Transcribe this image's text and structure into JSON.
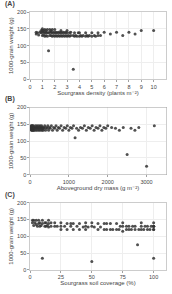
{
  "chart_data": [
    {
      "type": "scatter",
      "title": "(A)",
      "xlabel": "Sourgrass density (plants m⁻²)",
      "ylabel": "1000-grain weight (g)",
      "xlim": [
        0,
        11
      ],
      "ylim": [
        0,
        200
      ],
      "xticks": [
        0,
        1,
        2,
        3,
        4,
        5,
        6,
        7,
        8,
        9,
        10
      ],
      "yticks": [
        0,
        50,
        100,
        150,
        200
      ],
      "grid": true,
      "color": "#333333",
      "x": [
        0.5,
        0.5,
        0.6,
        0.7,
        0.8,
        0.9,
        0.9,
        1.0,
        1.0,
        1.0,
        1.0,
        1.1,
        1.1,
        1.1,
        1.2,
        1.2,
        1.2,
        1.3,
        1.3,
        1.3,
        1.4,
        1.4,
        1.4,
        1.5,
        1.5,
        1.6,
        1.6,
        1.6,
        1.7,
        1.7,
        1.7,
        1.8,
        1.8,
        1.8,
        1.9,
        1.9,
        2.0,
        2.0,
        2.0,
        2.1,
        2.1,
        2.2,
        2.2,
        2.3,
        2.3,
        2.4,
        2.4,
        2.5,
        2.5,
        2.5,
        2.6,
        2.6,
        2.7,
        2.7,
        2.8,
        2.8,
        2.9,
        2.9,
        3.0,
        3.0,
        3.0,
        3.1,
        3.2,
        3.2,
        3.3,
        3.3,
        3.5,
        3.5,
        3.6,
        3.6,
        3.7,
        3.8,
        3.9,
        4.0,
        4.0,
        4.1,
        4.2,
        4.3,
        4.5,
        4.5,
        4.6,
        4.7,
        4.8,
        5.0,
        5.0,
        5.2,
        5.3,
        5.5,
        5.5,
        5.7,
        6.0,
        6.5,
        7.0,
        7.5,
        8.0,
        8.5,
        9.0,
        10.0
      ],
      "values": [
        135,
        140,
        138,
        132,
        140,
        145,
        138,
        130,
        140,
        145,
        150,
        132,
        140,
        145,
        128,
        138,
        148,
        130,
        140,
        145,
        128,
        138,
        148,
        85,
        138,
        130,
        140,
        148,
        130,
        140,
        145,
        128,
        138,
        148,
        130,
        140,
        128,
        138,
        148,
        130,
        140,
        128,
        138,
        130,
        140,
        128,
        138,
        130,
        140,
        145,
        128,
        138,
        130,
        140,
        128,
        138,
        130,
        140,
        128,
        138,
        145,
        130,
        128,
        138,
        130,
        140,
        30,
        130,
        128,
        138,
        130,
        128,
        138,
        128,
        138,
        130,
        128,
        130,
        128,
        138,
        130,
        128,
        130,
        128,
        138,
        130,
        128,
        130,
        138,
        130,
        140,
        135,
        140,
        130,
        140,
        135,
        145,
        145
      ]
    },
    {
      "type": "scatter",
      "title": "(B)",
      "xlabel": "Aboveground dry mass (g m⁻²)",
      "ylabel": "1000-grain weight (g)",
      "xlim": [
        0,
        3500
      ],
      "ylim": [
        0,
        200
      ],
      "xticks": [
        0,
        1000,
        2000,
        3000
      ],
      "yticks": [
        0,
        50,
        100,
        150,
        200
      ],
      "grid": true,
      "color": "#333333",
      "x": [
        5,
        10,
        15,
        20,
        25,
        30,
        35,
        40,
        45,
        50,
        55,
        60,
        65,
        70,
        75,
        80,
        85,
        90,
        95,
        100,
        110,
        120,
        130,
        140,
        150,
        160,
        170,
        180,
        190,
        200,
        210,
        220,
        230,
        240,
        250,
        260,
        270,
        280,
        290,
        300,
        310,
        320,
        330,
        340,
        350,
        360,
        380,
        400,
        420,
        440,
        460,
        480,
        500,
        520,
        550,
        580,
        610,
        640,
        670,
        700,
        730,
        760,
        800,
        840,
        880,
        920,
        960,
        1000,
        1040,
        1080,
        1120,
        1160,
        1200,
        1250,
        1300,
        1350,
        1400,
        1450,
        1500,
        1550,
        1600,
        1650,
        1700,
        1750,
        1800,
        1850,
        1900,
        1950,
        2000,
        2100,
        2200,
        2300,
        2400,
        2500,
        2600,
        2700,
        2800,
        3000,
        3200
      ],
      "values": [
        138,
        140,
        135,
        142,
        138,
        145,
        132,
        140,
        138,
        145,
        132,
        138,
        145,
        132,
        140,
        138,
        145,
        132,
        140,
        138,
        132,
        140,
        138,
        145,
        132,
        140,
        138,
        145,
        132,
        140,
        138,
        145,
        132,
        140,
        138,
        145,
        132,
        140,
        138,
        145,
        132,
        140,
        138,
        132,
        140,
        138,
        145,
        132,
        140,
        138,
        145,
        132,
        140,
        138,
        145,
        132,
        140,
        138,
        145,
        132,
        140,
        138,
        145,
        132,
        140,
        138,
        145,
        132,
        140,
        138,
        145,
        110,
        138,
        132,
        140,
        138,
        145,
        132,
        140,
        138,
        145,
        132,
        140,
        138,
        145,
        132,
        140,
        138,
        145,
        140,
        138,
        132,
        140,
        60,
        138,
        132,
        140,
        25,
        145
      ]
    },
    {
      "type": "scatter",
      "title": "(C)",
      "xlabel": "Sourgrass soil coverage (%)",
      "ylabel": "1000-grain weight (g)",
      "xlim": [
        0,
        110
      ],
      "ylim": [
        0,
        200
      ],
      "xticks": [
        0,
        25,
        50,
        75,
        100
      ],
      "yticks": [
        0,
        50,
        100,
        150,
        200
      ],
      "grid": true,
      "color": "#333333",
      "x": [
        2,
        2,
        3,
        3,
        4,
        5,
        5,
        6,
        7,
        7,
        8,
        8,
        9,
        10,
        10,
        10,
        12,
        12,
        13,
        13,
        14,
        15,
        15,
        15,
        17,
        17,
        20,
        20,
        22,
        25,
        25,
        25,
        28,
        30,
        30,
        33,
        33,
        35,
        35,
        38,
        40,
        40,
        43,
        45,
        45,
        45,
        47,
        50,
        50,
        50,
        52,
        55,
        55,
        57,
        60,
        60,
        62,
        62,
        65,
        65,
        67,
        70,
        70,
        72,
        73,
        75,
        75,
        75,
        78,
        78,
        80,
        80,
        82,
        83,
        85,
        85,
        87,
        88,
        90,
        90,
        90,
        92,
        93,
        95,
        95,
        97,
        98,
        100,
        100,
        100,
        100,
        100,
        100,
        100
      ],
      "values": [
        140,
        148,
        132,
        148,
        140,
        135,
        148,
        130,
        138,
        148,
        130,
        140,
        132,
        35,
        138,
        148,
        130,
        140,
        130,
        140,
        132,
        128,
        138,
        148,
        130,
        140,
        130,
        140,
        130,
        120,
        130,
        140,
        130,
        120,
        138,
        130,
        138,
        120,
        138,
        130,
        120,
        138,
        128,
        120,
        130,
        140,
        128,
        25,
        130,
        140,
        128,
        120,
        138,
        128,
        120,
        138,
        120,
        138,
        120,
        138,
        120,
        120,
        138,
        120,
        130,
        115,
        130,
        140,
        120,
        130,
        120,
        130,
        120,
        130,
        120,
        130,
        75,
        120,
        120,
        130,
        140,
        120,
        130,
        120,
        130,
        120,
        130,
        120,
        130,
        140,
        130,
        35,
        120,
        130
      ]
    }
  ]
}
